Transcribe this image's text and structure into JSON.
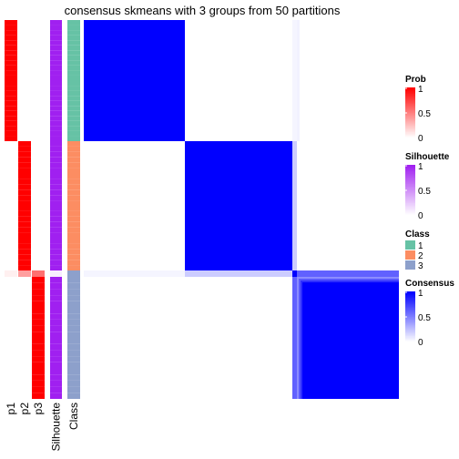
{
  "chart_data": {
    "type": "heatmap",
    "title": "consensus skmeans with 3 groups from 50 partitions",
    "n_groups": 3,
    "group_sizes": [
      24,
      24,
      21
    ],
    "annotation_columns": [
      "p1",
      "p2",
      "p3",
      "Silhouette",
      "Class"
    ],
    "class_levels": [
      "1",
      "2",
      "3"
    ],
    "colors": {
      "prob_high": "#ff0000",
      "prob_low": "#ffffff",
      "silhouette_high": "#a020f0",
      "silhouette_low": "#ffffff",
      "consensus_high": "#0000ff",
      "consensus_low": "#ffffff",
      "class_1": "#66c2a5",
      "class_2": "#fc8d62",
      "class_3": "#8da0cb"
    },
    "samples": {
      "class": [
        "1",
        "1",
        "1",
        "1",
        "1",
        "1",
        "1",
        "1",
        "1",
        "1",
        "1",
        "1",
        "1",
        "1",
        "1",
        "1",
        "1",
        "1",
        "1",
        "1",
        "1",
        "1",
        "1",
        "1",
        "2",
        "2",
        "2",
        "2",
        "2",
        "2",
        "2",
        "2",
        "2",
        "2",
        "2",
        "2",
        "2",
        "2",
        "2",
        "2",
        "2",
        "2",
        "2",
        "2",
        "2",
        "2",
        "2",
        "2",
        "3",
        "3",
        "3",
        "3",
        "3",
        "3",
        "3",
        "3",
        "3",
        "3",
        "3",
        "3",
        "3",
        "3",
        "3",
        "3",
        "3",
        "3",
        "3",
        "3",
        "3"
      ],
      "p1": [
        1,
        1,
        1,
        1,
        1,
        1,
        1,
        1,
        1,
        1,
        1,
        1,
        1,
        1,
        1,
        1,
        1,
        1,
        1,
        1,
        1,
        1,
        1,
        1,
        0,
        0,
        0,
        0,
        0,
        0,
        0,
        0,
        0,
        0,
        0,
        0,
        0,
        0,
        0,
        0,
        0,
        0,
        0,
        0,
        0,
        0,
        0,
        0,
        0.06,
        0,
        0,
        0,
        0,
        0,
        0,
        0,
        0,
        0,
        0,
        0,
        0,
        0,
        0,
        0,
        0,
        0,
        0,
        0,
        0
      ],
      "p2": [
        0,
        0,
        0,
        0,
        0,
        0,
        0,
        0,
        0,
        0,
        0,
        0,
        0,
        0,
        0,
        0,
        0,
        0,
        0,
        0,
        0,
        0,
        0,
        0,
        1,
        1,
        1,
        1,
        1,
        1,
        1,
        1,
        1,
        1,
        1,
        1,
        1,
        1,
        1,
        1,
        1,
        1,
        1,
        1,
        1,
        1,
        1,
        1,
        0.38,
        0,
        0,
        0,
        0,
        0,
        0,
        0,
        0,
        0,
        0,
        0,
        0,
        0,
        0,
        0,
        0,
        0,
        0,
        0,
        0
      ],
      "p3": [
        0,
        0,
        0,
        0,
        0,
        0,
        0,
        0,
        0,
        0,
        0,
        0,
        0,
        0,
        0,
        0,
        0,
        0,
        0,
        0,
        0,
        0,
        0,
        0,
        0,
        0,
        0,
        0,
        0,
        0,
        0,
        0,
        0,
        0,
        0,
        0,
        0,
        0,
        0,
        0,
        0,
        0,
        0,
        0,
        0,
        0,
        0,
        0,
        0.56,
        1,
        1,
        1,
        1,
        1,
        1,
        1,
        1,
        1,
        1,
        1,
        1,
        1,
        1,
        1,
        1,
        1,
        1,
        1,
        1
      ],
      "silhouette": [
        1,
        1,
        1,
        1,
        1,
        1,
        1,
        1,
        1,
        1,
        1,
        1,
        1,
        1,
        1,
        1,
        1,
        1,
        1,
        1,
        1,
        1,
        1,
        1,
        1,
        1,
        1,
        1,
        1,
        1,
        1,
        1,
        1,
        1,
        1,
        1,
        1,
        1,
        1,
        1,
        1,
        1,
        1,
        1,
        1,
        1,
        1,
        1,
        0.08,
        1,
        1,
        1,
        1,
        1,
        1,
        1,
        1,
        1,
        1,
        1,
        1,
        1,
        1,
        1,
        1,
        1,
        1,
        1,
        1
      ],
      "special": {
        "index": 48,
        "block1": 0.04,
        "block2": 0.2,
        "block3": 0.62
      },
      "outlier_column": {
        "index": 47,
        "block1": 0.05,
        "block3": 0.05
      },
      "block3_edge": [
        {
          "index": 49,
          "block3": 0.45
        },
        {
          "index": 50,
          "block3": 0.65
        },
        {
          "index": 51,
          "block3": 0.82
        }
      ]
    },
    "legends": [
      {
        "title": "Prob",
        "type": "continuous",
        "ticks": [
          "1",
          "0.5",
          "0"
        ],
        "tick_values": [
          1,
          0.5,
          0
        ],
        "low": "#ffffff",
        "high": "#ff0000"
      },
      {
        "title": "Silhouette",
        "type": "continuous",
        "ticks": [
          "1",
          "0.5",
          "0"
        ],
        "tick_values": [
          1,
          0.5,
          0
        ],
        "low": "#ffffff",
        "high": "#a020f0"
      },
      {
        "title": "Class",
        "type": "discrete",
        "entries": [
          "1",
          "2",
          "3"
        ],
        "colors": [
          "#66c2a5",
          "#fc8d62",
          "#8da0cb"
        ]
      },
      {
        "title": "Consensus",
        "type": "continuous",
        "ticks": [
          "1",
          "0.5",
          "0"
        ],
        "tick_values": [
          1,
          0.5,
          0
        ],
        "low": "#ffffff",
        "high": "#0000ff"
      }
    ]
  }
}
